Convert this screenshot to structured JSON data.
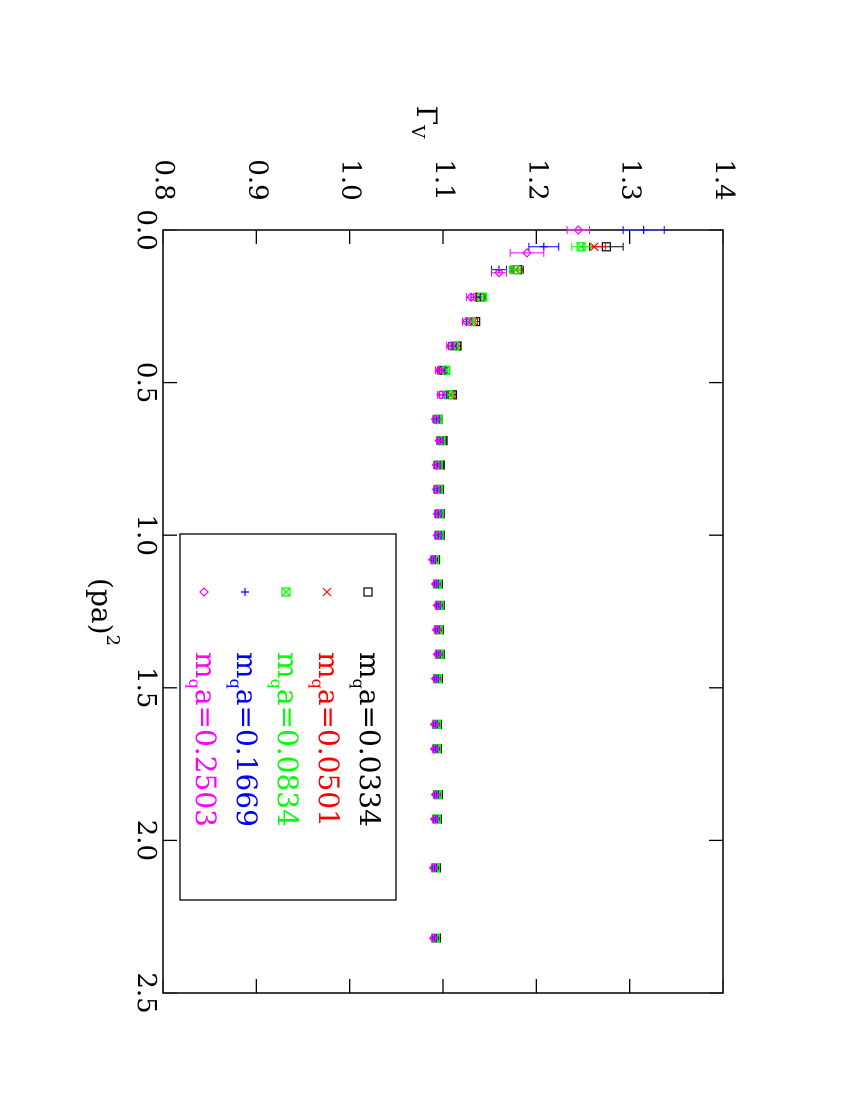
{
  "chart_data": {
    "type": "scatter",
    "orientation": "rotated-90-clockwise",
    "title": "",
    "xlabel": "(pa)²",
    "ylabel": "Γ_V",
    "xlabel_parts": {
      "main": "(pa)",
      "sup": "2"
    },
    "ylabel_parts": {
      "main": "Γ",
      "sub": "V"
    },
    "xlim": [
      0.0,
      2.5
    ],
    "ylim": [
      0.8,
      1.4
    ],
    "x_ticks": [
      0.0,
      0.5,
      1.0,
      1.5,
      2.0,
      2.5
    ],
    "y_ticks": [
      0.8,
      0.9,
      1.0,
      1.1,
      1.2,
      1.3,
      1.4
    ],
    "x_tick_labels": [
      "0.0",
      "0.5",
      "1.0",
      "1.5",
      "2.0",
      "2.5"
    ],
    "y_tick_labels": [
      "0.8",
      "0.9",
      "1.0",
      "1.1",
      "1.2",
      "1.3",
      "1.4"
    ],
    "grid": false,
    "legend_position": "lower-left",
    "series": [
      {
        "name": "m_q a=0.0334",
        "name_parts": [
          "m",
          "q",
          "a=0.0334"
        ],
        "color": "#000000",
        "marker": "square",
        "points": [
          {
            "x": 0.055,
            "y": 1.275,
            "err": 0.018
          },
          {
            "x": 0.13,
            "y": 1.18,
            "err": 0.006
          },
          {
            "x": 0.22,
            "y": 1.14,
            "err": 0.005
          },
          {
            "x": 0.3,
            "y": 1.135,
            "err": 0.004
          },
          {
            "x": 0.38,
            "y": 1.115,
            "err": 0.004
          },
          {
            "x": 0.46,
            "y": 1.1,
            "err": 0.004
          },
          {
            "x": 0.54,
            "y": 1.11,
            "err": 0.004
          },
          {
            "x": 0.62,
            "y": 1.095,
            "err": 0.003
          },
          {
            "x": 0.69,
            "y": 1.1,
            "err": 0.003
          },
          {
            "x": 0.77,
            "y": 1.097,
            "err": 0.003
          },
          {
            "x": 0.85,
            "y": 1.096,
            "err": 0.003
          },
          {
            "x": 0.93,
            "y": 1.097,
            "err": 0.003
          },
          {
            "x": 1.0,
            "y": 1.097,
            "err": 0.003
          },
          {
            "x": 1.08,
            "y": 1.092,
            "err": 0.002
          },
          {
            "x": 1.16,
            "y": 1.095,
            "err": 0.002
          },
          {
            "x": 1.23,
            "y": 1.097,
            "err": 0.002
          },
          {
            "x": 1.31,
            "y": 1.096,
            "err": 0.002
          },
          {
            "x": 1.39,
            "y": 1.097,
            "err": 0.002
          },
          {
            "x": 1.47,
            "y": 1.095,
            "err": 0.002
          },
          {
            "x": 1.62,
            "y": 1.094,
            "err": 0.002
          },
          {
            "x": 1.7,
            "y": 1.094,
            "err": 0.002
          },
          {
            "x": 1.85,
            "y": 1.095,
            "err": 0.002
          },
          {
            "x": 1.93,
            "y": 1.094,
            "err": 0.002
          },
          {
            "x": 2.09,
            "y": 1.093,
            "err": 0.002
          },
          {
            "x": 2.32,
            "y": 1.093,
            "err": 0.002
          }
        ]
      },
      {
        "name": "m_q a=0.0501",
        "name_parts": [
          "m",
          "q",
          "a=0.0501"
        ],
        "color": "#ff0000",
        "marker": "cross",
        "points": [
          {
            "x": 0.055,
            "y": 1.262,
            "err": 0.012
          },
          {
            "x": 0.13,
            "y": 1.178,
            "err": 0.006
          },
          {
            "x": 0.22,
            "y": 1.138,
            "err": 0.005
          },
          {
            "x": 0.3,
            "y": 1.133,
            "err": 0.004
          },
          {
            "x": 0.38,
            "y": 1.113,
            "err": 0.004
          },
          {
            "x": 0.46,
            "y": 1.1,
            "err": 0.004
          },
          {
            "x": 0.54,
            "y": 1.108,
            "err": 0.004
          },
          {
            "x": 0.62,
            "y": 1.095,
            "err": 0.003
          },
          {
            "x": 0.69,
            "y": 1.099,
            "err": 0.003
          },
          {
            "x": 0.77,
            "y": 1.096,
            "err": 0.003
          },
          {
            "x": 0.85,
            "y": 1.095,
            "err": 0.003
          },
          {
            "x": 0.93,
            "y": 1.096,
            "err": 0.003
          },
          {
            "x": 1.0,
            "y": 1.096,
            "err": 0.003
          },
          {
            "x": 1.08,
            "y": 1.091,
            "err": 0.002
          },
          {
            "x": 1.16,
            "y": 1.094,
            "err": 0.002
          },
          {
            "x": 1.23,
            "y": 1.096,
            "err": 0.002
          },
          {
            "x": 1.31,
            "y": 1.095,
            "err": 0.002
          },
          {
            "x": 1.39,
            "y": 1.096,
            "err": 0.002
          },
          {
            "x": 1.47,
            "y": 1.094,
            "err": 0.002
          },
          {
            "x": 1.62,
            "y": 1.093,
            "err": 0.002
          },
          {
            "x": 1.7,
            "y": 1.093,
            "err": 0.002
          },
          {
            "x": 1.85,
            "y": 1.094,
            "err": 0.002
          },
          {
            "x": 1.93,
            "y": 1.093,
            "err": 0.002
          },
          {
            "x": 2.09,
            "y": 1.092,
            "err": 0.002
          },
          {
            "x": 2.32,
            "y": 1.092,
            "err": 0.002
          }
        ]
      },
      {
        "name": "m_q a=0.0834",
        "name_parts": [
          "m",
          "q",
          "a=0.0834"
        ],
        "color": "#00ff00",
        "marker": "boxed-cross",
        "points": [
          {
            "x": 0.055,
            "y": 1.248,
            "err": 0.01
          },
          {
            "x": 0.13,
            "y": 1.177,
            "err": 0.006
          },
          {
            "x": 0.22,
            "y": 1.142,
            "err": 0.005
          },
          {
            "x": 0.3,
            "y": 1.13,
            "err": 0.004
          },
          {
            "x": 0.38,
            "y": 1.112,
            "err": 0.004
          },
          {
            "x": 0.46,
            "y": 1.103,
            "err": 0.004
          },
          {
            "x": 0.54,
            "y": 1.106,
            "err": 0.004
          },
          {
            "x": 0.62,
            "y": 1.095,
            "err": 0.003
          },
          {
            "x": 0.69,
            "y": 1.098,
            "err": 0.003
          },
          {
            "x": 0.77,
            "y": 1.095,
            "err": 0.003
          },
          {
            "x": 0.85,
            "y": 1.095,
            "err": 0.003
          },
          {
            "x": 0.93,
            "y": 1.096,
            "err": 0.003
          },
          {
            "x": 1.0,
            "y": 1.096,
            "err": 0.003
          },
          {
            "x": 1.08,
            "y": 1.091,
            "err": 0.002
          },
          {
            "x": 1.16,
            "y": 1.094,
            "err": 0.002
          },
          {
            "x": 1.23,
            "y": 1.096,
            "err": 0.002
          },
          {
            "x": 1.31,
            "y": 1.095,
            "err": 0.002
          },
          {
            "x": 1.39,
            "y": 1.096,
            "err": 0.002
          },
          {
            "x": 1.47,
            "y": 1.094,
            "err": 0.002
          },
          {
            "x": 1.62,
            "y": 1.093,
            "err": 0.002
          },
          {
            "x": 1.7,
            "y": 1.093,
            "err": 0.002
          },
          {
            "x": 1.85,
            "y": 1.094,
            "err": 0.002
          },
          {
            "x": 1.93,
            "y": 1.093,
            "err": 0.002
          },
          {
            "x": 2.09,
            "y": 1.092,
            "err": 0.002
          },
          {
            "x": 2.32,
            "y": 1.092,
            "err": 0.002
          }
        ]
      },
      {
        "name": "m_q a=0.1669",
        "name_parts": [
          "m",
          "q",
          "a=0.1669"
        ],
        "color": "#0000ff",
        "marker": "plus",
        "points": [
          {
            "x": 0.0,
            "y": 1.315,
            "err": 0.022
          },
          {
            "x": 0.055,
            "y": 1.208,
            "err": 0.016
          },
          {
            "x": 0.13,
            "y": 1.16,
            "err": 0.008
          },
          {
            "x": 0.22,
            "y": 1.135,
            "err": 0.005
          },
          {
            "x": 0.3,
            "y": 1.125,
            "err": 0.004
          },
          {
            "x": 0.38,
            "y": 1.11,
            "err": 0.004
          },
          {
            "x": 0.46,
            "y": 1.098,
            "err": 0.004
          },
          {
            "x": 0.54,
            "y": 1.1,
            "err": 0.004
          },
          {
            "x": 0.62,
            "y": 1.093,
            "err": 0.003
          },
          {
            "x": 0.69,
            "y": 1.097,
            "err": 0.003
          },
          {
            "x": 0.77,
            "y": 1.094,
            "err": 0.003
          },
          {
            "x": 0.85,
            "y": 1.094,
            "err": 0.003
          },
          {
            "x": 0.93,
            "y": 1.095,
            "err": 0.003
          },
          {
            "x": 1.0,
            "y": 1.095,
            "err": 0.003
          },
          {
            "x": 1.08,
            "y": 1.09,
            "err": 0.002
          },
          {
            "x": 1.16,
            "y": 1.093,
            "err": 0.002
          },
          {
            "x": 1.23,
            "y": 1.095,
            "err": 0.002
          },
          {
            "x": 1.31,
            "y": 1.094,
            "err": 0.002
          },
          {
            "x": 1.39,
            "y": 1.095,
            "err": 0.002
          },
          {
            "x": 1.47,
            "y": 1.093,
            "err": 0.002
          },
          {
            "x": 1.62,
            "y": 1.092,
            "err": 0.002
          },
          {
            "x": 1.7,
            "y": 1.092,
            "err": 0.002
          },
          {
            "x": 1.85,
            "y": 1.093,
            "err": 0.002
          },
          {
            "x": 1.93,
            "y": 1.092,
            "err": 0.002
          },
          {
            "x": 2.09,
            "y": 1.091,
            "err": 0.002
          },
          {
            "x": 2.32,
            "y": 1.091,
            "err": 0.002
          }
        ]
      },
      {
        "name": "m_q a=0.2503",
        "name_parts": [
          "m",
          "q",
          "a=0.2503"
        ],
        "color": "#ff00ff",
        "marker": "diamond",
        "points": [
          {
            "x": 0.0,
            "y": 1.245,
            "err": 0.012
          },
          {
            "x": 0.075,
            "y": 1.19,
            "err": 0.018
          },
          {
            "x": 0.14,
            "y": 1.16,
            "err": 0.008
          },
          {
            "x": 0.22,
            "y": 1.13,
            "err": 0.005
          },
          {
            "x": 0.3,
            "y": 1.125,
            "err": 0.004
          },
          {
            "x": 0.38,
            "y": 1.108,
            "err": 0.004
          },
          {
            "x": 0.46,
            "y": 1.096,
            "err": 0.004
          },
          {
            "x": 0.54,
            "y": 1.098,
            "err": 0.004
          },
          {
            "x": 0.62,
            "y": 1.092,
            "err": 0.003
          },
          {
            "x": 0.69,
            "y": 1.096,
            "err": 0.003
          },
          {
            "x": 0.77,
            "y": 1.093,
            "err": 0.003
          },
          {
            "x": 0.85,
            "y": 1.093,
            "err": 0.003
          },
          {
            "x": 0.93,
            "y": 1.094,
            "err": 0.003
          },
          {
            "x": 1.0,
            "y": 1.094,
            "err": 0.003
          },
          {
            "x": 1.08,
            "y": 1.089,
            "err": 0.002
          },
          {
            "x": 1.16,
            "y": 1.092,
            "err": 0.002
          },
          {
            "x": 1.23,
            "y": 1.094,
            "err": 0.002
          },
          {
            "x": 1.31,
            "y": 1.093,
            "err": 0.002
          },
          {
            "x": 1.39,
            "y": 1.094,
            "err": 0.002
          },
          {
            "x": 1.47,
            "y": 1.092,
            "err": 0.002
          },
          {
            "x": 1.62,
            "y": 1.091,
            "err": 0.002
          },
          {
            "x": 1.7,
            "y": 1.091,
            "err": 0.002
          },
          {
            "x": 1.85,
            "y": 1.092,
            "err": 0.002
          },
          {
            "x": 1.93,
            "y": 1.091,
            "err": 0.002
          },
          {
            "x": 2.09,
            "y": 1.09,
            "err": 0.002
          },
          {
            "x": 2.32,
            "y": 1.09,
            "err": 0.002
          }
        ]
      }
    ]
  }
}
